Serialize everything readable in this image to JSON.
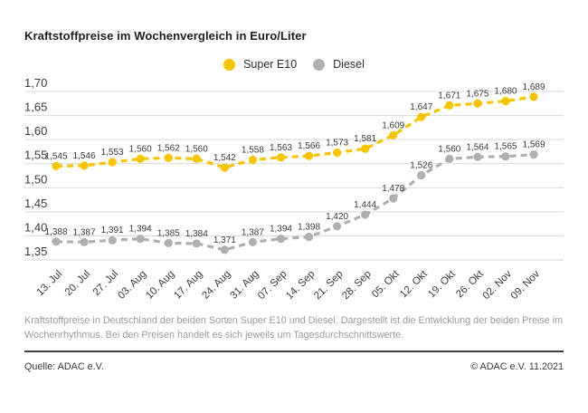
{
  "title": "Kraftstoffpreise im Wochenvergleich in Euro/Liter",
  "legend": [
    {
      "label": "Super E10",
      "color": "#F6C500"
    },
    {
      "label": "Diesel",
      "color": "#B0B0B0"
    }
  ],
  "chart_data": {
    "type": "line",
    "title": "Kraftstoffpreise im Wochenvergleich in Euro/Liter",
    "x": [
      "13. Jul",
      "20. Jul",
      "27. Jul",
      "03. Aug",
      "10. Aug",
      "17. Aug",
      "24. Aug",
      "31. Aug",
      "07. Sep",
      "14. Sep",
      "21. Sep",
      "28. Sep",
      "05. Okt",
      "12. Okt",
      "19. Okt",
      "26. Okt",
      "02. Nov",
      "09. Nov"
    ],
    "series": [
      {
        "name": "Super E10",
        "color": "#F6C500",
        "values": [
          1.545,
          1.546,
          1.553,
          1.56,
          1.562,
          1.56,
          1.542,
          1.558,
          1.563,
          1.566,
          1.573,
          1.581,
          1.609,
          1.647,
          1.671,
          1.675,
          1.68,
          1.689
        ]
      },
      {
        "name": "Diesel",
        "color": "#B0B0B0",
        "values": [
          1.388,
          1.387,
          1.391,
          1.394,
          1.385,
          1.384,
          1.371,
          1.387,
          1.394,
          1.398,
          1.42,
          1.444,
          1.478,
          1.526,
          1.56,
          1.564,
          1.565,
          1.569
        ]
      }
    ],
    "ylim": [
      1.35,
      1.7
    ],
    "yticks": [
      1.7,
      1.65,
      1.6,
      1.55,
      1.5,
      1.45,
      1.4,
      1.35
    ],
    "grid": true,
    "legend_position": "top-center",
    "point_labels": true,
    "decimal_separator": ",",
    "grid_color": "#d9d9d9",
    "label_color": "#3c3c3c"
  },
  "description": "Kraftstoffpreise in Deutschland der beiden Sorten Super E10 und Diesel. Dargestellt ist die Entwicklung der beiden Preise im Wochenrhythmus. Bei den Preisen handelt es sich jeweils um Tagesdurchschnittswerte.",
  "footer": {
    "source": "Quelle: ADAC e.V.",
    "copyright": "© ADAC e.V. 11.2021"
  }
}
